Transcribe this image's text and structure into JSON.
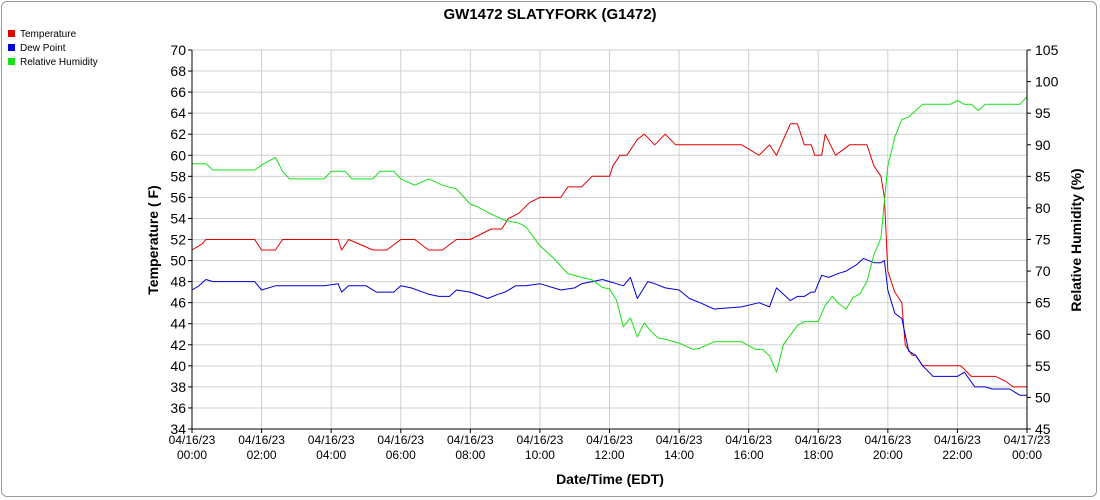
{
  "chart_data": {
    "type": "line",
    "title": "GW1472 SLATYFORK (G1472)",
    "xlabel": "Date/Time (EDT)",
    "ylabel_left": "Temperature ( F)",
    "ylabel_right": "Relative Humidity (%)",
    "ylim_left": [
      34,
      70
    ],
    "ylim_right": [
      45,
      105
    ],
    "y_ticks_left": [
      34,
      36,
      38,
      40,
      42,
      44,
      46,
      48,
      50,
      52,
      54,
      56,
      58,
      60,
      62,
      64,
      66,
      68,
      70
    ],
    "y_ticks_right": [
      45,
      50,
      55,
      60,
      65,
      70,
      75,
      80,
      85,
      90,
      95,
      100,
      105
    ],
    "x_range_hours": [
      0,
      24
    ],
    "x_ticks": [
      {
        "hour": 0,
        "date": "04/16/23",
        "time": "00:00"
      },
      {
        "hour": 2,
        "date": "04/16/23",
        "time": "02:00"
      },
      {
        "hour": 4,
        "date": "04/16/23",
        "time": "04:00"
      },
      {
        "hour": 6,
        "date": "04/16/23",
        "time": "06:00"
      },
      {
        "hour": 8,
        "date": "04/16/23",
        "time": "08:00"
      },
      {
        "hour": 10,
        "date": "04/16/23",
        "time": "10:00"
      },
      {
        "hour": 12,
        "date": "04/16/23",
        "time": "12:00"
      },
      {
        "hour": 14,
        "date": "04/16/23",
        "time": "14:00"
      },
      {
        "hour": 16,
        "date": "04/16/23",
        "time": "16:00"
      },
      {
        "hour": 18,
        "date": "04/16/23",
        "time": "18:00"
      },
      {
        "hour": 20,
        "date": "04/16/23",
        "time": "20:00"
      },
      {
        "hour": 22,
        "date": "04/16/23",
        "time": "22:00"
      },
      {
        "hour": 24,
        "date": "04/17/23",
        "time": "00:00"
      }
    ],
    "grid": true,
    "legend_position": "top-left",
    "series": [
      {
        "name": "Temperature",
        "color": "#e00000",
        "axis": "left",
        "x": [
          0,
          0.3,
          0.4,
          1.8,
          2.0,
          2.4,
          2.6,
          4.2,
          4.3,
          4.5,
          5.2,
          5.6,
          6.0,
          6.4,
          6.8,
          7.2,
          7.6,
          8.0,
          8.6,
          8.9,
          9.1,
          9.4,
          9.7,
          10.0,
          10.6,
          10.8,
          11.2,
          11.5,
          12.0,
          12.1,
          12.3,
          12.5,
          12.8,
          13.0,
          13.3,
          13.6,
          13.9,
          14.8,
          15.8,
          16.3,
          16.6,
          16.8,
          17.2,
          17.4,
          17.6,
          17.8,
          17.9,
          18.1,
          18.2,
          18.5,
          18.9,
          19.4,
          19.6,
          19.8,
          19.9,
          20.0,
          20.2,
          20.4,
          20.5,
          20.7,
          20.8,
          21.0,
          21.3,
          21.6,
          22.1,
          22.4,
          22.8,
          23.1,
          23.4,
          23.6,
          23.8,
          24.0
        ],
        "values": [
          51,
          51.6,
          52,
          52,
          51,
          51,
          52,
          52,
          51,
          52,
          51,
          51,
          52,
          52,
          51,
          51,
          52,
          52,
          53,
          53,
          54,
          54.5,
          55.5,
          56,
          56,
          57,
          57,
          58,
          58,
          59,
          60,
          60,
          61.5,
          62,
          61,
          62,
          61,
          61,
          61,
          60,
          61,
          60,
          63,
          63,
          61,
          61,
          60,
          60,
          62,
          60,
          61,
          61,
          59,
          58,
          56,
          49,
          47,
          46,
          42,
          41,
          41,
          40,
          40,
          40,
          40,
          39,
          39,
          39,
          38.5,
          38,
          38,
          38
        ]
      },
      {
        "name": "Dew Point",
        "color": "#0000d8",
        "axis": "left",
        "x": [
          0,
          0.2,
          0.4,
          0.6,
          1.8,
          2.0,
          2.4,
          2.8,
          3.2,
          3.8,
          4.2,
          4.3,
          4.5,
          5.0,
          5.3,
          5.8,
          6.0,
          6.3,
          6.8,
          7.1,
          7.4,
          7.6,
          8.0,
          8.5,
          8.8,
          9.0,
          9.3,
          9.6,
          10.0,
          10.6,
          11.0,
          11.2,
          11.5,
          11.8,
          12.0,
          12.2,
          12.4,
          12.6,
          12.8,
          13.1,
          13.3,
          13.6,
          14.0,
          14.3,
          14.6,
          15.0,
          15.8,
          16.3,
          16.6,
          16.8,
          17.2,
          17.4,
          17.6,
          17.8,
          17.9,
          18.1,
          18.3,
          18.6,
          18.8,
          19.1,
          19.3,
          19.6,
          19.8,
          19.9,
          20.0,
          20.2,
          20.4,
          20.6,
          20.8,
          21.0,
          21.3,
          21.7,
          22.0,
          22.2,
          22.5,
          22.8,
          23.0,
          23.5,
          23.8,
          24.0
        ],
        "values": [
          47.2,
          47.6,
          48.2,
          48,
          48,
          47.2,
          47.6,
          47.6,
          47.6,
          47.6,
          47.8,
          47,
          47.6,
          47.6,
          47,
          47,
          47.6,
          47.4,
          46.8,
          46.6,
          46.6,
          47.2,
          47,
          46.4,
          46.8,
          47,
          47.6,
          47.6,
          47.8,
          47.2,
          47.4,
          47.8,
          48,
          48.2,
          48,
          47.8,
          47.6,
          48.4,
          46.4,
          48,
          47.8,
          47.4,
          47.2,
          46.4,
          46,
          45.4,
          45.6,
          46,
          45.6,
          47.4,
          46.2,
          46.6,
          46.6,
          47,
          47,
          48.6,
          48.4,
          48.8,
          49,
          49.6,
          50.2,
          49.8,
          49.8,
          50,
          47.2,
          45,
          44.5,
          41.4,
          41,
          40,
          39,
          39,
          39,
          39.4,
          38,
          38,
          37.8,
          37.8,
          37.2,
          37.2
        ]
      },
      {
        "name": "Relative Humidity",
        "color": "#16e016",
        "axis": "right",
        "x": [
          0,
          0.4,
          0.6,
          1.8,
          2.0,
          2.2,
          2.4,
          2.6,
          2.8,
          3.0,
          3.8,
          4.0,
          4.4,
          4.6,
          5.2,
          5.4,
          5.8,
          6.0,
          6.4,
          6.8,
          7.2,
          7.6,
          8.0,
          8.2,
          8.6,
          9.0,
          9.4,
          9.6,
          10.0,
          10.4,
          10.8,
          11.2,
          11.5,
          11.8,
          12.0,
          12.2,
          12.4,
          12.6,
          12.8,
          13.0,
          13.2,
          13.4,
          13.6,
          14.0,
          14.4,
          14.6,
          15.0,
          15.4,
          15.8,
          16.2,
          16.4,
          16.6,
          16.8,
          17.0,
          17.4,
          17.6,
          17.8,
          18.0,
          18.2,
          18.4,
          18.6,
          18.8,
          19.0,
          19.2,
          19.4,
          19.6,
          19.8,
          20.0,
          20.2,
          20.4,
          20.6,
          21.0,
          21.4,
          21.8,
          22.0,
          22.2,
          22.4,
          22.6,
          22.8,
          23.0,
          23.4,
          23.8,
          24.0
        ],
        "values": [
          87,
          87,
          86,
          86,
          86.8,
          87.4,
          88,
          85.8,
          84.6,
          84.6,
          84.6,
          85.8,
          85.8,
          84.6,
          84.6,
          85.8,
          85.8,
          84.6,
          83.6,
          84.6,
          83.6,
          83,
          80.6,
          80.2,
          79,
          78,
          77.6,
          77,
          74,
          72,
          69.6,
          69,
          68.6,
          67.4,
          67.2,
          65.4,
          61.2,
          62.6,
          59.6,
          61.8,
          60.4,
          59.4,
          59.2,
          58.6,
          57.6,
          57.8,
          58.8,
          58.8,
          58.8,
          57.6,
          57.6,
          56.6,
          54,
          58.4,
          61.4,
          62,
          62,
          62,
          64.6,
          66,
          64.8,
          64,
          65.8,
          66.4,
          68.4,
          72.6,
          75.2,
          86.6,
          91.2,
          94,
          94.4,
          96.4,
          96.4,
          96.4,
          97,
          96.4,
          96.4,
          95.4,
          96.4,
          96.4,
          96.4,
          96.4,
          97.6
        ]
      }
    ]
  }
}
